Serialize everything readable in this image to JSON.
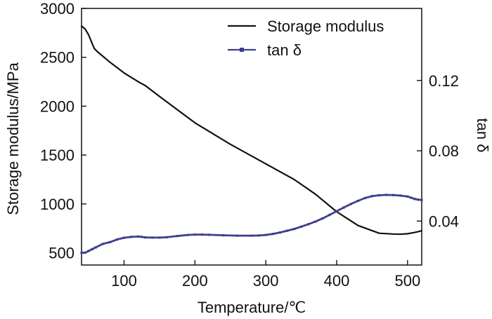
{
  "chart_data": {
    "type": "line",
    "xlabel": "Temperature/℃",
    "ylabel_left": "Storage modulus/MPa",
    "ylabel_right": "tan δ",
    "xlim": [
      40,
      520
    ],
    "ylim_left": [
      375,
      3000
    ],
    "ylim_right": [
      0.015,
      0.161
    ],
    "xticks": [
      100,
      200,
      300,
      400,
      500
    ],
    "yticks_left": [
      500,
      1000,
      1500,
      2000,
      2500,
      3000
    ],
    "yticks_right": [
      0.04,
      0.08,
      0.12
    ],
    "legend_position": "top-right",
    "colors": {
      "storage": "#111111",
      "tan": "#3e3f8f"
    },
    "series": [
      {
        "name": "Storage modulus",
        "axis": "left",
        "x": [
          40,
          45,
          50,
          55,
          58,
          62,
          80,
          100,
          120,
          130,
          150,
          200,
          250,
          300,
          340,
          370,
          400,
          430,
          460,
          480,
          490,
          500,
          510,
          520
        ],
        "values": [
          2820,
          2790,
          2730,
          2640,
          2590,
          2560,
          2450,
          2340,
          2250,
          2210,
          2100,
          1830,
          1610,
          1410,
          1250,
          1100,
          920,
          780,
          700,
          692,
          690,
          695,
          708,
          725
        ]
      },
      {
        "name": "tan δ",
        "axis": "right",
        "x": [
          40,
          45,
          50,
          55,
          60,
          70,
          80,
          90,
          100,
          110,
          120,
          125,
          130,
          140,
          150,
          160,
          175,
          190,
          200,
          210,
          220,
          240,
          260,
          280,
          290,
          300,
          310,
          320,
          330,
          340,
          350,
          360,
          370,
          380,
          390,
          400,
          410,
          420,
          430,
          440,
          450,
          460,
          470,
          480,
          490,
          500,
          505,
          510,
          515,
          520
        ],
        "values": [
          0.022,
          0.022,
          0.023,
          0.024,
          0.025,
          0.027,
          0.028,
          0.0295,
          0.0305,
          0.031,
          0.0312,
          0.031,
          0.0307,
          0.0306,
          0.0306,
          0.0308,
          0.0315,
          0.0321,
          0.0323,
          0.0323,
          0.0322,
          0.0319,
          0.0317,
          0.0317,
          0.0318,
          0.0321,
          0.0327,
          0.0335,
          0.0345,
          0.0355,
          0.0368,
          0.0382,
          0.0397,
          0.0415,
          0.0435,
          0.0456,
          0.0477,
          0.0497,
          0.0515,
          0.0531,
          0.0542,
          0.0547,
          0.0549,
          0.0548,
          0.0545,
          0.054,
          0.0533,
          0.0526,
          0.0522,
          0.052
        ]
      }
    ]
  }
}
